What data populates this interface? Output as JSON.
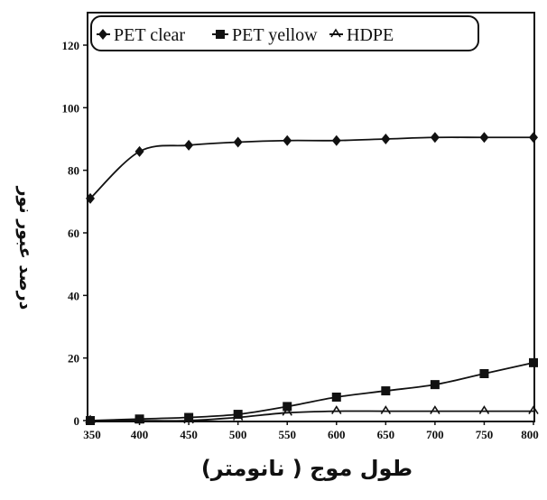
{
  "chart_data": {
    "type": "line",
    "title": "",
    "xlabel": "طول موج ( نانومتر)",
    "ylabel": "درصد عبور نور",
    "x": [
      350,
      400,
      450,
      500,
      550,
      600,
      650,
      700,
      750,
      800
    ],
    "xlim": [
      350,
      800
    ],
    "ylim": [
      0,
      125
    ],
    "xticks": [
      "350",
      "400",
      "450",
      "500",
      "550",
      "600",
      "650",
      "700",
      "750",
      "800"
    ],
    "yticks": [
      "0",
      "20",
      "40",
      "60",
      "80",
      "100",
      "120"
    ],
    "grid": false,
    "legend_position": "top",
    "series": [
      {
        "name": "PET clear",
        "marker": "diamond",
        "values": [
          71,
          86,
          88,
          89,
          89.5,
          89.5,
          90,
          90.5,
          90.5,
          90.5
        ]
      },
      {
        "name": "PET yellow",
        "marker": "square",
        "values": [
          0,
          0.5,
          1,
          2,
          4.5,
          7.5,
          9.5,
          11.5,
          15,
          18.5
        ]
      },
      {
        "name": "HDPE",
        "marker": "triangle-open",
        "values": [
          0,
          0,
          0,
          1,
          2.5,
          3,
          3,
          3,
          3,
          3
        ]
      }
    ]
  }
}
